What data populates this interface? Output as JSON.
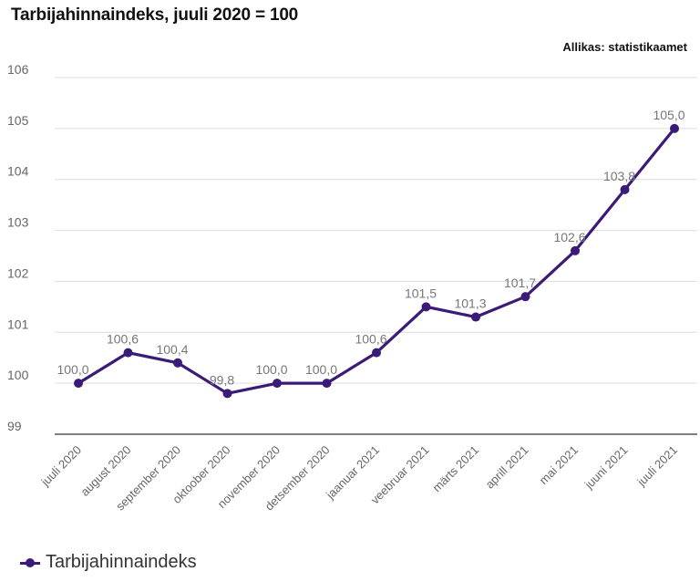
{
  "title": "Tarbijahinnaindeks, juuli 2020 = 100",
  "source": "Allikas: statistikaamet",
  "colors": {
    "series": "#3b1a78",
    "grid": "#dddddd",
    "baseline": "#333333",
    "ticks": "#666666",
    "labels": "#777777"
  },
  "chart_data": {
    "type": "line",
    "categories": [
      "juuli 2020",
      "august 2020",
      "september 2020",
      "oktoober 2020",
      "november 2020",
      "detsember 2020",
      "jaanuar 2021",
      "veebruar 2021",
      "märts 2021",
      "aprill 2021",
      "mai 2021",
      "juuni 2021",
      "juuli 2021"
    ],
    "series": [
      {
        "name": "Tarbijahinnaindeks",
        "values": [
          100.0,
          100.6,
          100.4,
          99.8,
          100.0,
          100.0,
          100.6,
          101.5,
          101.3,
          101.7,
          102.6,
          103.8,
          105.0
        ]
      }
    ],
    "data_labels": [
      "100,0",
      "100,6",
      "100,4",
      "99,8",
      "100,0",
      "100,0",
      "100,6",
      "101,5",
      "101,3",
      "101,7",
      "102,6",
      "103,8",
      "105,0"
    ],
    "yticks": [
      "99",
      "100",
      "101",
      "102",
      "103",
      "104",
      "105",
      "106"
    ],
    "ylim": [
      99,
      106
    ],
    "grid": true,
    "legend": "bottom-left"
  }
}
